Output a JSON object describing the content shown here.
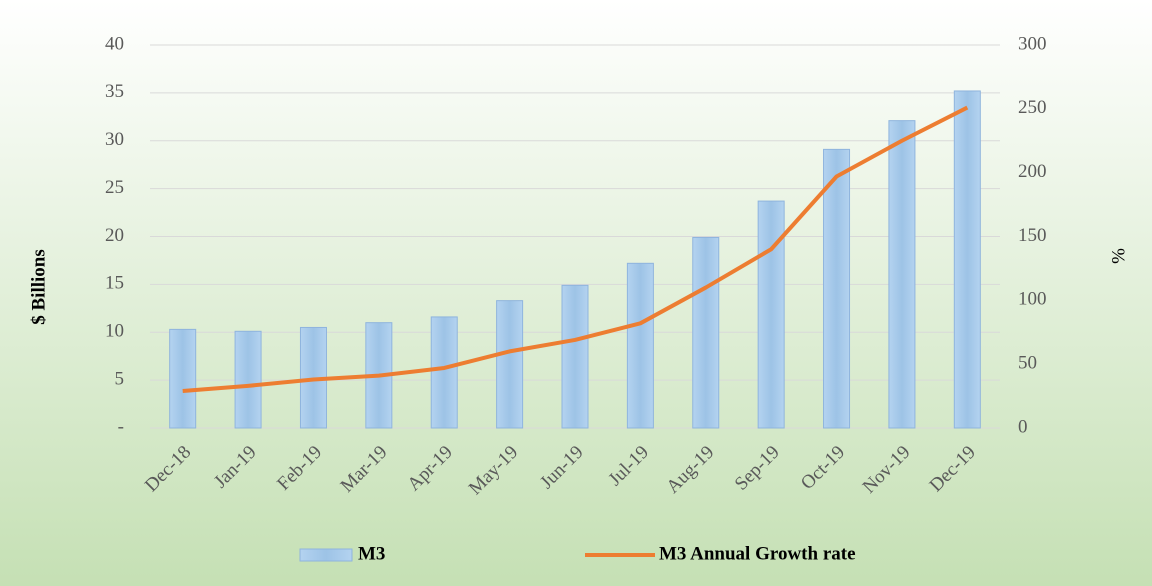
{
  "chart_data": {
    "type": "bar_line",
    "categories": [
      "Dec-18",
      "Jan-19",
      "Feb-19",
      "Mar-19",
      "Apr-19",
      "May-19",
      "Jun-19",
      "Jul-19",
      "Aug-19",
      "Sep-19",
      "Oct-19",
      "Nov-19",
      "Dec-19"
    ],
    "series": [
      {
        "name": "M3",
        "color": "#9dc3e6",
        "type": "bar",
        "values": [
          10.3,
          10.1,
          10.5,
          11.0,
          11.6,
          13.3,
          14.9,
          17.2,
          19.9,
          23.7,
          29.1,
          32.1,
          35.2
        ]
      },
      {
        "name": "M3 Annual Growth rate",
        "color": "#ed7d31",
        "type": "line",
        "axis": "y2",
        "values": [
          29,
          33,
          38,
          41,
          47,
          60,
          69,
          82,
          110,
          140,
          197,
          225,
          251
        ]
      }
    ],
    "ylabel": "$ Billions",
    "y2label": "%",
    "ylim": [
      0,
      40
    ],
    "yticks": [
      {
        "value": 0,
        "label": "-"
      },
      5,
      10,
      15,
      20,
      25,
      30,
      35,
      40
    ],
    "y2lim": [
      0,
      300
    ],
    "y2ticks": [
      0,
      50,
      100,
      150,
      200,
      250,
      300
    ],
    "grid": true,
    "legend": "bottom"
  }
}
